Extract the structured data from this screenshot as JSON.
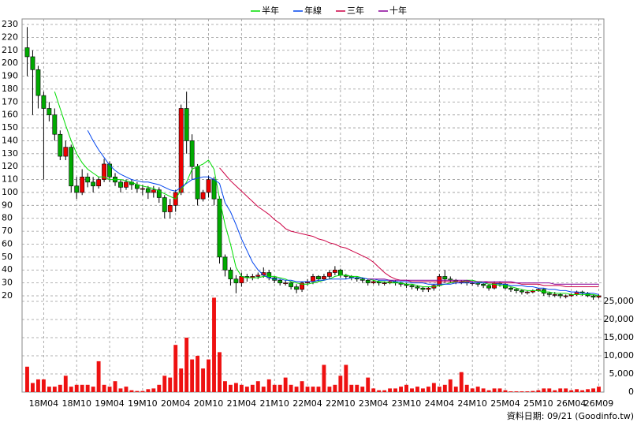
{
  "chart_data": {
    "type": "candlestick",
    "footnote": "資料日期: 09/21 (Goodinfo.tw)",
    "categories": [
      null,
      null,
      null,
      "18M04",
      null,
      null,
      null,
      null,
      null,
      "18M10",
      null,
      null,
      null,
      null,
      null,
      "19M04",
      null,
      null,
      null,
      null,
      null,
      "19M10",
      null,
      null,
      null,
      null,
      null,
      "20M04",
      null,
      null,
      null,
      null,
      null,
      "20M10",
      null,
      null,
      null,
      null,
      null,
      "21M04",
      null,
      null,
      null,
      null,
      null,
      "21M10",
      null,
      null,
      null,
      null,
      null,
      "22M04",
      null,
      null,
      null,
      null,
      null,
      "22M10",
      null,
      null,
      null,
      null,
      null,
      "23M04",
      null,
      null,
      null,
      null,
      null,
      "23M10",
      null,
      null,
      null,
      null,
      null,
      "24M04",
      null,
      null,
      null,
      null,
      null,
      "24M10",
      null,
      null,
      null,
      null,
      null,
      "25M04",
      null,
      null,
      null,
      null,
      null,
      "25M10",
      null,
      null,
      null,
      null,
      null,
      "26M04",
      null,
      null,
      null,
      null,
      "26M09"
    ],
    "open": [
      212,
      205,
      195,
      175,
      165,
      160,
      145,
      128,
      135,
      105,
      100,
      112,
      108,
      105,
      110,
      122,
      112,
      108,
      104,
      108,
      106,
      103,
      103,
      100,
      102,
      96,
      85,
      90,
      100,
      165,
      140,
      120,
      95,
      100,
      110,
      95,
      50,
      40,
      33,
      30,
      35,
      34,
      35,
      36,
      38,
      34,
      32,
      30,
      30,
      27,
      25,
      30,
      31,
      35,
      33,
      35,
      38,
      40,
      36,
      35,
      34,
      33,
      32,
      30,
      31,
      30,
      30,
      31,
      30,
      29,
      28,
      27,
      26,
      25,
      26,
      28,
      35,
      33,
      32,
      31,
      31,
      30,
      30,
      29,
      28,
      26,
      30,
      29,
      26,
      25,
      24,
      23,
      23,
      24,
      25,
      22,
      21,
      21,
      20,
      20,
      21,
      23,
      22,
      20,
      19
    ],
    "high": [
      228,
      210,
      198,
      178,
      170,
      165,
      148,
      140,
      137,
      112,
      118,
      115,
      112,
      112,
      126,
      124,
      115,
      110,
      110,
      110,
      108,
      106,
      105,
      105,
      104,
      98,
      95,
      102,
      168,
      178,
      145,
      122,
      102,
      113,
      112,
      97,
      52,
      42,
      36,
      38,
      37,
      37,
      38,
      42,
      40,
      35,
      33,
      32,
      31,
      29,
      31,
      33,
      37,
      36,
      37,
      40,
      43,
      41,
      37,
      36,
      35,
      34,
      33,
      32,
      32,
      31,
      32,
      32,
      31,
      30,
      29,
      28,
      27,
      27,
      29,
      37,
      40,
      35,
      33,
      32,
      32,
      31,
      31,
      30,
      29,
      31,
      31,
      30,
      27,
      26,
      25,
      24,
      25,
      26,
      26,
      23,
      23,
      22,
      21,
      22,
      24,
      24,
      23,
      21,
      21
    ],
    "low": [
      190,
      160,
      165,
      110,
      155,
      140,
      125,
      125,
      100,
      95,
      98,
      104,
      100,
      103,
      108,
      108,
      105,
      100,
      102,
      102,
      100,
      98,
      95,
      96,
      92,
      80,
      80,
      85,
      98,
      130,
      110,
      90,
      93,
      96,
      90,
      45,
      35,
      28,
      22,
      27,
      31,
      32,
      33,
      34,
      32,
      30,
      28,
      28,
      25,
      22,
      23,
      28,
      29,
      31,
      32,
      33,
      36,
      34,
      33,
      32,
      31,
      30,
      28,
      29,
      28,
      28,
      29,
      28,
      27,
      26,
      25,
      24,
      23,
      23,
      24,
      27,
      30,
      30,
      29,
      29,
      28,
      28,
      27,
      26,
      24,
      25,
      27,
      25,
      23,
      22,
      21,
      21,
      22,
      23,
      20,
      19,
      19,
      18,
      18,
      19,
      20,
      20,
      19,
      17,
      18
    ],
    "close": [
      205,
      195,
      175,
      165,
      160,
      145,
      128,
      135,
      105,
      100,
      112,
      108,
      105,
      110,
      122,
      112,
      108,
      104,
      108,
      106,
      103,
      103,
      100,
      102,
      96,
      85,
      90,
      100,
      165,
      140,
      120,
      95,
      100,
      110,
      95,
      50,
      40,
      33,
      30,
      35,
      34,
      35,
      36,
      38,
      34,
      32,
      30,
      30,
      27,
      25,
      30,
      31,
      35,
      33,
      35,
      38,
      40,
      36,
      35,
      34,
      33,
      32,
      30,
      31,
      30,
      30,
      31,
      30,
      29,
      28,
      27,
      26,
      25,
      26,
      28,
      35,
      33,
      32,
      31,
      31,
      30,
      30,
      29,
      28,
      26,
      30,
      29,
      26,
      25,
      24,
      23,
      23,
      24,
      25,
      22,
      21,
      21,
      20,
      20,
      21,
      23,
      22,
      20,
      19,
      20
    ],
    "up_color": "#ee0000",
    "down_color": "#00aa00",
    "volume": [
      7000,
      2500,
      3500,
      3500,
      1500,
      1500,
      2000,
      4500,
      1500,
      2000,
      2000,
      2000,
      1500,
      8500,
      2000,
      1500,
      3000,
      1000,
      1500,
      500,
      300,
      300,
      800,
      1000,
      2000,
      4500,
      4000,
      13000,
      6500,
      15000,
      9000,
      10000,
      6500,
      9000,
      26000,
      11000,
      3000,
      2000,
      2500,
      2000,
      1500,
      2000,
      3000,
      1500,
      3500,
      2000,
      2000,
      4000,
      2000,
      1500,
      3000,
      1500,
      1500,
      1500,
      7500,
      1500,
      2000,
      4500,
      7500,
      2000,
      2000,
      1500,
      4000,
      1000,
      500,
      500,
      1000,
      1000,
      1500,
      2000,
      1000,
      1500,
      1000,
      1500,
      2500,
      1500,
      2000,
      3500,
      1500,
      5500,
      2000,
      1000,
      1500,
      1000,
      500,
      1000,
      1000,
      500,
      200,
      200,
      200,
      200,
      300,
      500,
      1000,
      1000,
      500,
      1000,
      1000,
      500,
      800,
      500,
      800,
      1000,
      1500
    ],
    "volume_color": "#ee1111",
    "series": [
      {
        "name": "半年",
        "color": "#00dd00",
        "values": [
          null,
          null,
          null,
          null,
          null,
          178,
          165,
          152,
          140,
          130,
          123,
          118,
          115,
          112,
          112,
          110,
          110,
          110,
          109,
          108,
          106,
          105,
          104,
          103,
          101,
          99,
          97,
          95,
          102,
          108,
          118,
          120,
          122,
          125,
          118,
          95,
          75,
          60,
          42,
          35,
          34,
          34,
          34,
          35,
          35,
          35,
          34,
          33,
          31,
          30,
          29,
          29,
          30,
          31,
          32,
          33,
          35,
          36,
          36,
          35,
          35,
          34,
          33,
          32,
          31,
          31,
          30,
          30,
          30,
          29,
          29,
          28,
          27,
          27,
          27,
          28,
          29,
          30,
          31,
          31,
          32,
          32,
          31,
          30,
          29,
          29,
          28,
          28,
          27,
          26,
          25,
          24,
          24,
          24,
          23,
          23,
          22,
          22,
          22,
          21,
          21,
          21,
          21,
          21,
          20
        ]
      },
      {
        "name": "年線",
        "color": "#0044ee",
        "values": [
          null,
          null,
          null,
          null,
          null,
          null,
          null,
          null,
          null,
          null,
          null,
          148,
          140,
          133,
          127,
          121,
          117,
          114,
          112,
          110,
          109,
          108,
          108,
          107,
          106,
          104,
          102,
          101,
          104,
          107,
          110,
          111,
          112,
          112,
          110,
          107,
          92,
          85,
          75,
          64,
          55,
          46,
          40,
          36,
          34,
          33,
          33,
          32,
          32,
          31,
          31,
          31,
          31,
          32,
          32,
          33,
          33,
          33,
          33,
          34,
          34,
          34,
          33,
          33,
          32,
          32,
          32,
          31,
          31,
          31,
          30,
          30,
          30,
          29,
          29,
          29,
          29,
          29,
          30,
          30,
          30,
          30,
          30,
          30,
          30,
          30,
          29,
          29,
          28,
          28,
          28,
          27,
          27,
          26,
          26,
          25,
          25,
          24,
          24,
          23,
          23,
          22,
          22,
          22,
          21
        ]
      },
      {
        "name": "三年",
        "color": "#cc0044",
        "values": [
          null,
          null,
          null,
          null,
          null,
          null,
          null,
          null,
          null,
          null,
          null,
          null,
          null,
          null,
          null,
          null,
          null,
          null,
          null,
          null,
          null,
          null,
          null,
          null,
          null,
          null,
          null,
          null,
          null,
          null,
          null,
          null,
          null,
          null,
          null,
          119,
          114,
          109,
          105,
          101,
          97,
          93,
          89,
          86,
          83,
          79,
          76,
          72,
          70,
          69,
          68,
          67,
          66,
          64,
          63,
          61,
          60,
          58,
          57,
          55,
          53,
          51,
          49,
          46,
          42,
          38,
          35,
          33,
          32,
          32,
          31,
          31,
          31,
          31,
          31,
          31,
          31,
          31,
          31,
          31,
          31,
          31,
          31,
          31,
          30,
          30,
          30,
          30,
          30,
          30,
          29,
          29,
          29,
          29,
          28,
          28,
          28,
          28,
          27,
          27,
          27,
          27,
          27,
          27,
          27
        ]
      },
      {
        "name": "十年",
        "color": "#880099",
        "values": [
          null,
          null,
          null,
          null,
          null,
          null,
          null,
          null,
          null,
          null,
          null,
          null,
          null,
          null,
          null,
          null,
          null,
          null,
          null,
          null,
          null,
          null,
          null,
          null,
          null,
          null,
          null,
          null,
          null,
          null,
          null,
          null,
          null,
          null,
          null,
          null,
          null,
          null,
          null,
          null,
          null,
          null,
          null,
          null,
          null,
          null,
          null,
          null,
          null,
          null,
          null,
          null,
          null,
          null,
          null,
          null,
          null,
          null,
          null,
          null,
          null,
          null,
          33,
          33,
          33,
          33,
          32,
          32,
          32,
          32,
          32,
          32,
          32,
          32,
          32,
          32,
          32,
          32,
          32,
          32,
          32,
          31,
          31,
          31,
          31,
          31,
          31,
          31,
          31,
          30,
          30,
          30,
          30,
          30,
          30,
          30,
          29,
          29,
          29,
          29,
          29,
          29,
          29,
          29,
          29
        ]
      }
    ],
    "ylim": [
      20,
      230
    ],
    "yticks": [
      20,
      30,
      40,
      50,
      60,
      70,
      80,
      90,
      100,
      110,
      120,
      130,
      140,
      150,
      160,
      170,
      180,
      190,
      200,
      210,
      220,
      230
    ],
    "y2lim": [
      0,
      25000
    ],
    "y2ticks": [
      0,
      {
        "value": 5000,
        "label": "5,000"
      },
      {
        "value": 10000,
        "label": "10,000"
      },
      {
        "value": 15000,
        "label": "15,000"
      },
      {
        "value": 20000,
        "label": "20,000"
      },
      {
        "value": 25000,
        "label": "25,000"
      }
    ],
    "grid": true
  }
}
